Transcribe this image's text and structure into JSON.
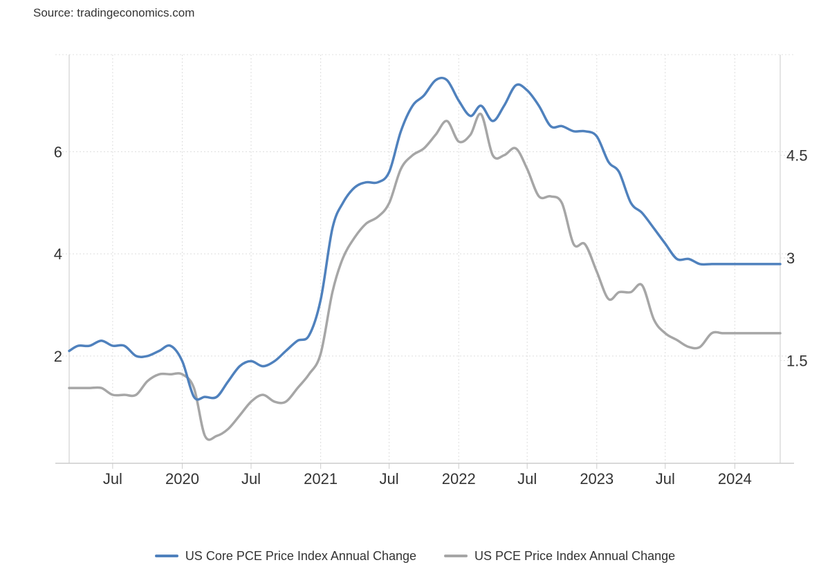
{
  "source": "Source: tradingeconomics.com",
  "chart_data": {
    "type": "line",
    "title": "",
    "xlabel": "",
    "ylabel": "",
    "grid": true,
    "legend_position": "bottom-center",
    "x_range": [
      "2019-03-08",
      "2024-04-30"
    ],
    "x_ticks": [
      {
        "date": "2019-07-01",
        "label": "Jul"
      },
      {
        "date": "2020-01-01",
        "label": "2020"
      },
      {
        "date": "2020-07-01",
        "label": "Jul"
      },
      {
        "date": "2021-01-01",
        "label": "2021"
      },
      {
        "date": "2021-07-01",
        "label": "Jul"
      },
      {
        "date": "2022-01-01",
        "label": "2022"
      },
      {
        "date": "2022-07-01",
        "label": "Jul"
      },
      {
        "date": "2023-01-01",
        "label": "2023"
      },
      {
        "date": "2023-07-01",
        "label": "Jul"
      },
      {
        "date": "2024-01-01",
        "label": "2024"
      }
    ],
    "y_left": {
      "range": [
        -0.1,
        7.9
      ],
      "ticks": [
        {
          "value": 2,
          "label": "2"
        },
        {
          "value": 4,
          "label": "4"
        },
        {
          "value": 6,
          "label": "6"
        }
      ]
    },
    "y_right": {
      "range": [
        0.0,
        5.97
      ],
      "ticks": [
        {
          "value": 1.5,
          "label": "1.5"
        },
        {
          "value": 3,
          "label": "3"
        },
        {
          "value": 4.5,
          "label": "4.5"
        }
      ]
    },
    "series": [
      {
        "name": "US Core PCE Price Index Annual Change",
        "axis": "left",
        "color": "#4f81bd",
        "x": [
          "2019-03-08",
          "2019-04-01",
          "2019-05-01",
          "2019-06-01",
          "2019-07-01",
          "2019-08-01",
          "2019-09-01",
          "2019-10-01",
          "2019-11-01",
          "2019-12-01",
          "2020-01-01",
          "2020-02-01",
          "2020-03-01",
          "2020-04-01",
          "2020-05-01",
          "2020-06-01",
          "2020-07-01",
          "2020-08-01",
          "2020-09-01",
          "2020-10-01",
          "2020-11-01",
          "2020-12-01",
          "2021-01-01",
          "2021-02-01",
          "2021-03-01",
          "2021-04-01",
          "2021-05-01",
          "2021-06-01",
          "2021-07-01",
          "2021-08-01",
          "2021-09-01",
          "2021-10-01",
          "2021-11-01",
          "2021-12-01",
          "2022-01-01",
          "2022-02-01",
          "2022-03-01",
          "2022-04-01",
          "2022-05-01",
          "2022-06-01",
          "2022-07-01",
          "2022-08-01",
          "2022-09-01",
          "2022-10-01",
          "2022-11-01",
          "2022-12-01",
          "2023-01-01",
          "2023-02-01",
          "2023-03-01",
          "2023-04-01",
          "2023-05-01",
          "2023-06-01",
          "2023-07-01",
          "2023-08-01",
          "2023-09-01",
          "2023-10-01",
          "2023-11-01",
          "2023-12-01",
          "2024-01-01",
          "2024-02-01",
          "2024-03-01",
          "2024-04-01",
          "2024-04-30"
        ],
        "values": [
          2.1,
          2.2,
          2.2,
          2.3,
          2.2,
          2.2,
          2.0,
          2.0,
          2.1,
          2.2,
          1.9,
          1.2,
          1.2,
          1.2,
          1.5,
          1.8,
          1.9,
          1.8,
          1.9,
          2.1,
          2.3,
          2.4,
          3.1,
          4.5,
          5.0,
          5.3,
          5.4,
          5.4,
          5.6,
          6.4,
          6.9,
          7.1,
          7.4,
          7.4,
          7.0,
          6.7,
          6.9,
          6.6,
          6.9,
          7.3,
          7.2,
          6.9,
          6.5,
          6.5,
          6.4,
          6.4,
          6.3,
          5.8,
          5.6,
          5.0,
          4.8,
          4.5,
          4.2,
          3.9,
          3.9,
          3.8,
          3.8,
          3.8,
          3.8,
          3.8,
          3.8,
          3.8,
          3.8
        ]
      },
      {
        "name": "US PCE Price Index Annual Change",
        "axis": "right",
        "color": "#a6a6a6",
        "x": [
          "2019-03-08",
          "2019-04-01",
          "2019-05-01",
          "2019-06-01",
          "2019-07-01",
          "2019-08-01",
          "2019-09-01",
          "2019-10-01",
          "2019-11-01",
          "2019-12-01",
          "2020-01-01",
          "2020-02-01",
          "2020-03-01",
          "2020-04-01",
          "2020-05-01",
          "2020-06-01",
          "2020-07-01",
          "2020-08-01",
          "2020-09-01",
          "2020-10-01",
          "2020-11-01",
          "2020-12-01",
          "2021-01-01",
          "2021-02-01",
          "2021-03-01",
          "2021-04-01",
          "2021-05-01",
          "2021-06-01",
          "2021-07-01",
          "2021-08-01",
          "2021-09-01",
          "2021-10-01",
          "2021-11-01",
          "2021-12-01",
          "2022-01-01",
          "2022-02-01",
          "2022-03-01",
          "2022-04-01",
          "2022-05-01",
          "2022-06-01",
          "2022-07-01",
          "2022-08-01",
          "2022-09-01",
          "2022-10-01",
          "2022-11-01",
          "2022-12-01",
          "2023-01-01",
          "2023-02-01",
          "2023-03-01",
          "2023-04-01",
          "2023-05-01",
          "2023-06-01",
          "2023-07-01",
          "2023-08-01",
          "2023-09-01",
          "2023-10-01",
          "2023-11-01",
          "2023-12-01",
          "2024-01-01",
          "2024-02-01",
          "2024-03-01",
          "2024-04-01",
          "2024-04-30"
        ],
        "values": [
          1.1,
          1.1,
          1.1,
          1.1,
          1.0,
          1.0,
          1.0,
          1.2,
          1.3,
          1.3,
          1.3,
          1.1,
          0.4,
          0.4,
          0.5,
          0.7,
          0.9,
          1.0,
          0.9,
          0.9,
          1.1,
          1.3,
          1.6,
          2.5,
          3.0,
          3.3,
          3.5,
          3.6,
          3.8,
          4.3,
          4.5,
          4.6,
          4.8,
          5.0,
          4.7,
          4.8,
          5.1,
          4.5,
          4.5,
          4.6,
          4.3,
          3.9,
          3.9,
          3.8,
          3.2,
          3.2,
          2.8,
          2.4,
          2.5,
          2.5,
          2.6,
          2.1,
          1.9,
          1.8,
          1.7,
          1.7,
          1.9,
          1.9,
          1.9,
          1.9,
          1.9,
          1.9,
          1.9
        ]
      }
    ]
  }
}
